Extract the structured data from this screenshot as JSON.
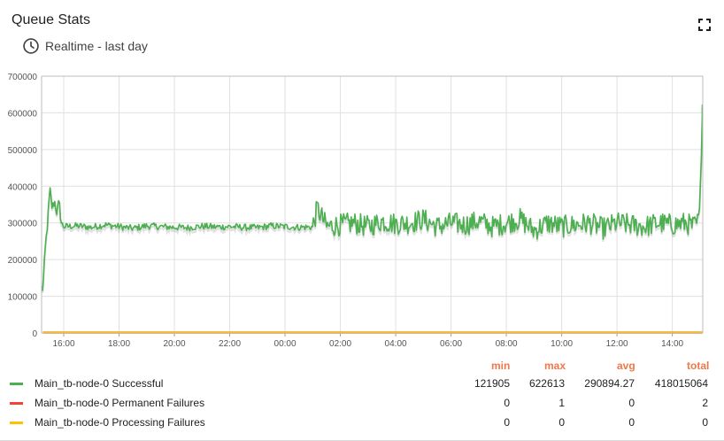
{
  "header": {
    "title": "Queue Stats",
    "timewindow": "Realtime - last day",
    "icons": {
      "time": "clock-icon",
      "fullscreen": "fullscreen-icon"
    }
  },
  "legend": {
    "headers": {
      "min": "min",
      "max": "max",
      "avg": "avg",
      "total": "total"
    },
    "items": [
      {
        "name": "Main_tb-node-0 Successful",
        "color": "#4caf50",
        "min": "121905",
        "max": "622613",
        "avg": "290894.27",
        "total": "418015064"
      },
      {
        "name": "Main_tb-node-0 Permanent Failures",
        "color": "#f44336",
        "min": "0",
        "max": "1",
        "avg": "0",
        "total": "2"
      },
      {
        "name": "Main_tb-node-0 Processing Failures",
        "color": "#ffc107",
        "min": "0",
        "max": "0",
        "avg": "0",
        "total": "0"
      }
    ]
  },
  "chart_data": {
    "type": "line",
    "title": "",
    "xlabel": "",
    "ylabel": "",
    "ylim": [
      0,
      700000
    ],
    "yticks": [
      "0",
      "100000",
      "200000",
      "300000",
      "400000",
      "500000",
      "600000",
      "700000"
    ],
    "xticks": [
      "16:00",
      "18:00",
      "20:00",
      "22:00",
      "00:00",
      "02:00",
      "04:00",
      "06:00",
      "08:00",
      "10:00",
      "12:00",
      "14:00"
    ],
    "xlim_hours": [
      15.2,
      15.1
    ],
    "grid": true,
    "series": [
      {
        "name": "Main_tb-node-0 Successful",
        "color": "#4caf50",
        "x": [
          "15:15",
          "15:20",
          "15:25",
          "15:30",
          "15:35",
          "15:40",
          "15:45",
          "15:50",
          "15:55",
          "16:00",
          "16:30",
          "17:00",
          "17:30",
          "18:00",
          "18:30",
          "19:00",
          "19:30",
          "20:00",
          "20:30",
          "21:00",
          "21:30",
          "22:00",
          "22:30",
          "23:00",
          "23:30",
          "00:00",
          "00:30",
          "01:00",
          "01:10",
          "01:30",
          "02:00",
          "02:30",
          "03:00",
          "03:30",
          "04:00",
          "04:30",
          "05:00",
          "05:30",
          "06:00",
          "06:30",
          "07:00",
          "07:30",
          "08:00",
          "08:30",
          "09:00",
          "09:30",
          "10:00",
          "10:30",
          "11:00",
          "11:30",
          "12:00",
          "12:30",
          "13:00",
          "13:30",
          "14:00",
          "14:30",
          "14:45",
          "14:55",
          "15:00",
          "15:05"
        ],
        "y": [
          121905,
          230000,
          300000,
          390000,
          340000,
          360000,
          330000,
          355000,
          300000,
          290000,
          292000,
          288000,
          295000,
          290000,
          285000,
          292000,
          290000,
          288000,
          287000,
          291000,
          289000,
          290000,
          288000,
          287000,
          292000,
          290000,
          288000,
          289000,
          340000,
          290000,
          295000,
          300000,
          290000,
          305000,
          298000,
          300000,
          310000,
          290000,
          300000,
          295000,
          305000,
          290000,
          300000,
          310000,
          280000,
          300000,
          290000,
          295000,
          300000,
          285000,
          300000,
          295000,
          290000,
          300000,
          295000,
          300000,
          290000,
          300000,
          330000,
          622613
        ]
      },
      {
        "name": "Main_tb-node-0 Permanent Failures",
        "color": "#f44336",
        "x": [
          "15:15",
          "15:05"
        ],
        "y": [
          0,
          1
        ]
      },
      {
        "name": "Main_tb-node-0 Processing Failures",
        "color": "#ffc107",
        "x": [
          "15:15",
          "15:05"
        ],
        "y": [
          0,
          0
        ]
      }
    ]
  }
}
